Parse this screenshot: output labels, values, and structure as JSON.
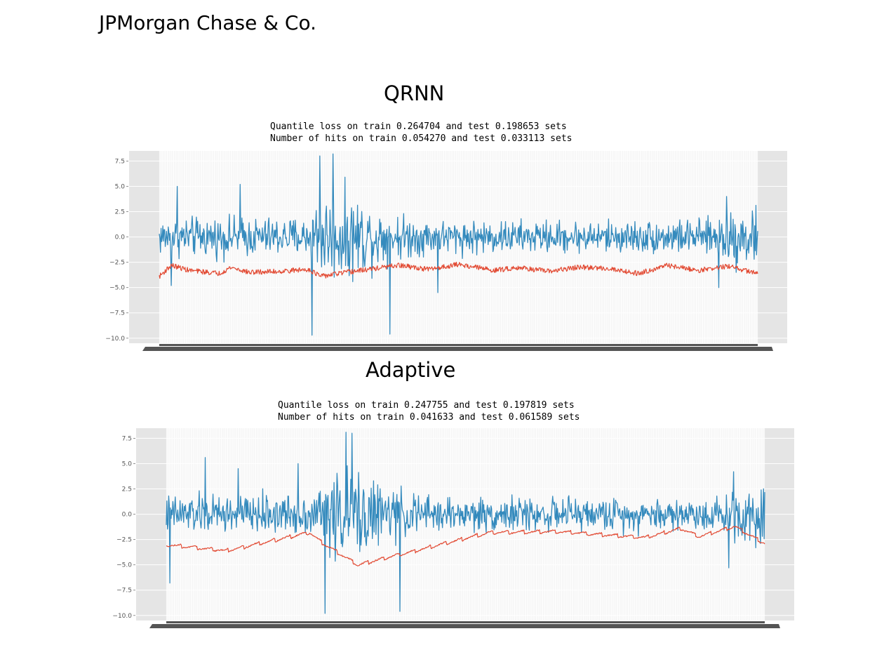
{
  "header": {
    "company": "JPMorgan Chase & Co."
  },
  "colors": {
    "actual": "#348abd",
    "quantile": "#e24a33",
    "panel_bg": "#e5e5e5",
    "plot_bg": "#fcfcfc",
    "grid": "#ffffff",
    "axis_strip": "#555555"
  },
  "chart_data": [
    {
      "type": "line",
      "section_title": "QRNN",
      "subtitle_lines": [
        "Quantile loss on train 0.264704 and test 0.198653 sets",
        "Number of hits on train 0.054270 and test 0.033113 sets"
      ],
      "ylim": [
        -10.5,
        8.5
      ],
      "yticks": [
        7.5,
        5.0,
        2.5,
        0.0,
        -2.5,
        -5.0,
        -7.5,
        -10.0
      ],
      "ytick_labels": [
        "7.5",
        "5.0",
        "2.5",
        "0.0",
        "−2.5",
        "−5.0",
        "−7.5",
        "−10.0"
      ],
      "n_points": 1000,
      "series": [
        {
          "role": "observed",
          "mean": 0.0,
          "noise_amplitude": 1.6,
          "volatility_profile": [
            [
              0,
              1.0
            ],
            [
              0.25,
              1.0
            ],
            [
              0.26,
              2.2
            ],
            [
              0.32,
              2.2
            ],
            [
              0.38,
              1.3
            ],
            [
              0.45,
              0.9
            ],
            [
              0.7,
              0.8
            ],
            [
              0.93,
              0.9
            ],
            [
              0.95,
              1.6
            ],
            [
              1.0,
              1.4
            ]
          ],
          "spikes": [
            [
              0.255,
              -9.7
            ],
            [
              0.268,
              8.0
            ],
            [
              0.29,
              8.2
            ],
            [
              0.385,
              -9.6
            ],
            [
              0.465,
              -5.5
            ],
            [
              0.935,
              -5.0
            ],
            [
              0.948,
              4.0
            ],
            [
              0.02,
              -4.8
            ],
            [
              0.03,
              5.0
            ],
            [
              0.135,
              5.2
            ]
          ]
        },
        {
          "role": "quantile",
          "profile": [
            [
              0,
              -3.9
            ],
            [
              0.02,
              -2.8
            ],
            [
              0.05,
              -3.3
            ],
            [
              0.1,
              -3.6
            ],
            [
              0.12,
              -3.0
            ],
            [
              0.15,
              -3.5
            ],
            [
              0.2,
              -3.4
            ],
            [
              0.25,
              -3.2
            ],
            [
              0.27,
              -3.9
            ],
            [
              0.3,
              -3.6
            ],
            [
              0.35,
              -3.2
            ],
            [
              0.4,
              -2.8
            ],
            [
              0.45,
              -3.2
            ],
            [
              0.5,
              -2.7
            ],
            [
              0.56,
              -3.3
            ],
            [
              0.6,
              -3.0
            ],
            [
              0.65,
              -3.4
            ],
            [
              0.7,
              -3.0
            ],
            [
              0.75,
              -3.1
            ],
            [
              0.8,
              -3.6
            ],
            [
              0.85,
              -2.8
            ],
            [
              0.9,
              -3.3
            ],
            [
              0.95,
              -2.9
            ],
            [
              1.0,
              -3.6
            ]
          ],
          "noise_amplitude": 0.25
        }
      ]
    },
    {
      "type": "line",
      "section_title": "Adaptive",
      "subtitle_lines": [
        "Quantile loss on train 0.247755 and test 0.197819 sets",
        "Number of hits on train 0.041633 and test 0.061589 sets"
      ],
      "ylim": [
        -10.5,
        8.5
      ],
      "yticks": [
        7.5,
        5.0,
        2.5,
        0.0,
        -2.5,
        -5.0,
        -7.5,
        -10.0
      ],
      "ytick_labels": [
        "7.5",
        "5.0",
        "2.5",
        "0.0",
        "−2.5",
        "−5.0",
        "−7.5",
        "−10.0"
      ],
      "n_points": 1000,
      "series": [
        {
          "role": "observed",
          "mean": 0.0,
          "noise_amplitude": 1.6,
          "volatility_profile": [
            [
              0,
              1.0
            ],
            [
              0.25,
              1.0
            ],
            [
              0.26,
              2.2
            ],
            [
              0.32,
              2.2
            ],
            [
              0.38,
              1.3
            ],
            [
              0.45,
              0.9
            ],
            [
              0.7,
              0.8
            ],
            [
              0.93,
              0.9
            ],
            [
              0.95,
              1.6
            ],
            [
              1.0,
              1.4
            ]
          ],
          "spikes": [
            [
              0.265,
              -9.8
            ],
            [
              0.3,
              8.1
            ],
            [
              0.31,
              8.0
            ],
            [
              0.39,
              -9.6
            ],
            [
              0.006,
              -6.8
            ],
            [
              0.065,
              5.6
            ],
            [
              0.94,
              -5.3
            ],
            [
              0.948,
              4.2
            ],
            [
              0.22,
              5.0
            ],
            [
              0.12,
              4.5
            ]
          ]
        },
        {
          "role": "quantile",
          "sawtooth": true,
          "profile": [
            [
              0,
              -3.0
            ],
            [
              0.1,
              -3.6
            ],
            [
              0.24,
              -1.8
            ],
            [
              0.26,
              -2.8
            ],
            [
              0.32,
              -5.0
            ],
            [
              0.54,
              -1.8
            ],
            [
              0.65,
              -1.7
            ],
            [
              0.8,
              -2.3
            ],
            [
              0.86,
              -1.4
            ],
            [
              0.89,
              -2.2
            ],
            [
              0.95,
              -1.2
            ],
            [
              1.0,
              -2.9
            ]
          ],
          "noise_amplitude": 0.06
        }
      ]
    }
  ]
}
